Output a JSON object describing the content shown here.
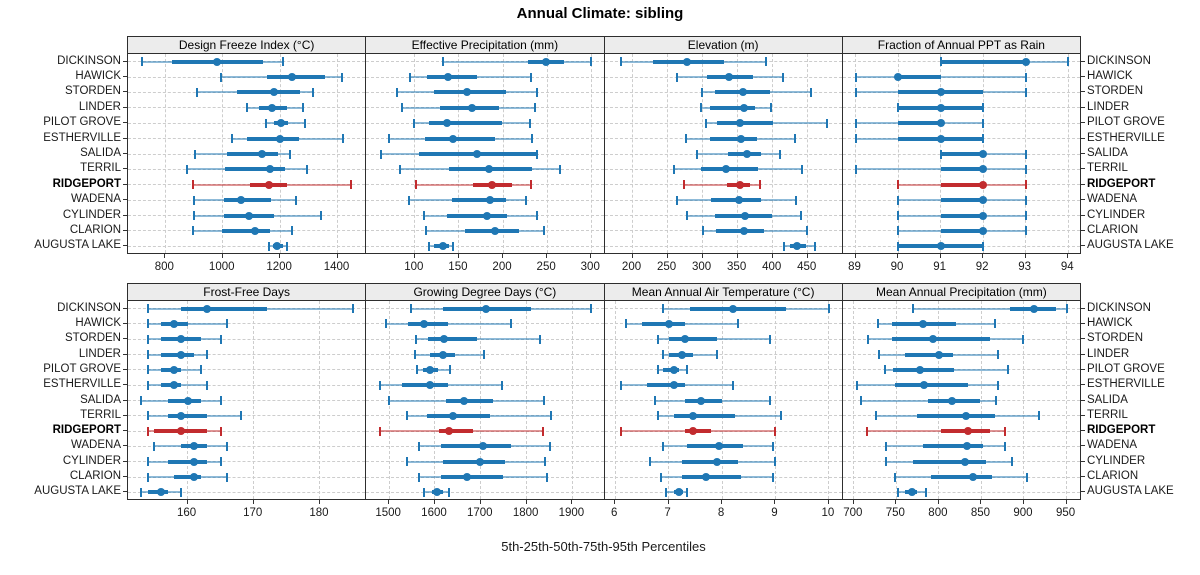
{
  "title": "Annual Climate: sibling",
  "colors": {
    "series": "#1f77b4",
    "highlight": "#c22b2e",
    "strip_bg": "#ececec",
    "panel_border": "#2e2e2e",
    "grid": "#cdcdcd"
  },
  "chart_data": {
    "type": "scatter",
    "subtype": "trellis percentile dot-interval plot (median dot, 25-75 thick bar, 5-95 whisker)",
    "title": "Annual Climate: sibling",
    "xlabel": "5th-25th-50th-75th-95th Percentiles",
    "percentiles": [
      5,
      25,
      50,
      75,
      95
    ],
    "grid": "dashed",
    "locations": [
      "DICKINSON",
      "HAWICK",
      "STORDEN",
      "LINDER",
      "PILOT GROVE",
      "ESTHERVILLE",
      "SALIDA",
      "TERRIL",
      "RIDGEPORT",
      "WADENA",
      "CYLINDER",
      "CLARION",
      "AUGUSTA LAKE"
    ],
    "highlight_location": "RIDGEPORT",
    "panels": [
      {
        "title": "Design Freeze Index (°C)",
        "xlim": [
          670,
          1500
        ],
        "ticks": [
          800,
          1000,
          1200,
          1400
        ],
        "values": [
          [
            720,
            825,
            980,
            1140,
            1210
          ],
          [
            995,
            1155,
            1243,
            1355,
            1415
          ],
          [
            910,
            1050,
            1177,
            1270,
            1315
          ],
          [
            1086,
            1125,
            1173,
            1223,
            1281
          ],
          [
            1151,
            1180,
            1202,
            1229,
            1285
          ],
          [
            1032,
            1086,
            1200,
            1267,
            1418
          ],
          [
            904,
            1014,
            1136,
            1194,
            1235
          ],
          [
            875,
            1009,
            1163,
            1217,
            1293
          ],
          [
            898,
            1095,
            1160,
            1225,
            1447
          ],
          [
            899,
            1006,
            1064,
            1167,
            1256
          ],
          [
            899,
            1003,
            1093,
            1177,
            1343
          ],
          [
            895,
            997,
            1111,
            1163,
            1243
          ],
          [
            1160,
            1175,
            1190,
            1210,
            1225
          ]
        ]
      },
      {
        "title": "Effective Precipitation (mm)",
        "xlim": [
          45,
          315
        ],
        "ticks": [
          100,
          150,
          200,
          250,
          300
        ],
        "values": [
          [
            132,
            228,
            249,
            269,
            300
          ],
          [
            95,
            114,
            138,
            171,
            232
          ],
          [
            80,
            122,
            159,
            203,
            238
          ],
          [
            86,
            129,
            165,
            195,
            236
          ],
          [
            99,
            116,
            136,
            199,
            231
          ],
          [
            71,
            112,
            143,
            191,
            233
          ],
          [
            62,
            105,
            171,
            237,
            238
          ],
          [
            83,
            139,
            184,
            233,
            265
          ],
          [
            101,
            166,
            188,
            210,
            232
          ],
          [
            93,
            142,
            185,
            203,
            226
          ],
          [
            110,
            137,
            182,
            205,
            238
          ],
          [
            113,
            157,
            191,
            218,
            247
          ],
          [
            116,
            122,
            132,
            139,
            143
          ]
        ]
      },
      {
        "title": "Elevation (m)",
        "xlim": [
          160,
          500
        ],
        "ticks": [
          200,
          250,
          300,
          350,
          400,
          450
        ],
        "values": [
          [
            183,
            229,
            278,
            331,
            391
          ],
          [
            264,
            306,
            338,
            372,
            415
          ],
          [
            299,
            317,
            357,
            396,
            455
          ],
          [
            297,
            311,
            359,
            375,
            397
          ],
          [
            305,
            320,
            354,
            400,
            478
          ],
          [
            277,
            311,
            355,
            378,
            432
          ],
          [
            292,
            336,
            364,
            383,
            410
          ],
          [
            259,
            298,
            333,
            379,
            442
          ],
          [
            274,
            335,
            354,
            367,
            382
          ],
          [
            264,
            312,
            352,
            383,
            433
          ],
          [
            278,
            318,
            361,
            399,
            441
          ],
          [
            300,
            319,
            359,
            388,
            449
          ],
          [
            416,
            425,
            435,
            448,
            460
          ]
        ]
      },
      {
        "title": "Fraction of Annual PPT as Rain",
        "xlim": [
          88.7,
          94.3
        ],
        "ticks": [
          89,
          90,
          91,
          92,
          93,
          94
        ],
        "values": [
          [
            91,
            91,
            93,
            93,
            94
          ],
          [
            89,
            90,
            90,
            91,
            93
          ],
          [
            89,
            90,
            91,
            92,
            93
          ],
          [
            90,
            90,
            91,
            92,
            92
          ],
          [
            89,
            90,
            91,
            91,
            92
          ],
          [
            89,
            90,
            91,
            92,
            92
          ],
          [
            91,
            91,
            92,
            92,
            93
          ],
          [
            89,
            91,
            92,
            92,
            93
          ],
          [
            90,
            91,
            92,
            92,
            93
          ],
          [
            90,
            91,
            92,
            92,
            93
          ],
          [
            90,
            91,
            92,
            92,
            93
          ],
          [
            90,
            91,
            92,
            92,
            93
          ],
          [
            90,
            90,
            91,
            92,
            92
          ]
        ]
      },
      {
        "title": "Frost-Free Days",
        "xlim": [
          151,
          187
        ],
        "ticks": [
          160,
          170,
          180
        ],
        "values": [
          [
            154,
            159,
            163,
            172,
            185
          ],
          [
            154,
            156,
            158,
            160,
            166
          ],
          [
            154,
            156,
            159,
            162,
            165
          ],
          [
            154,
            156,
            159,
            161,
            163
          ],
          [
            154,
            156,
            158,
            159,
            162
          ],
          [
            154,
            156,
            158,
            159,
            163
          ],
          [
            153,
            157,
            160,
            162,
            165
          ],
          [
            154,
            157,
            159,
            163,
            168
          ],
          [
            154,
            155,
            159,
            163,
            165
          ],
          [
            155,
            159,
            161,
            163,
            166
          ],
          [
            154,
            157,
            161,
            163,
            165
          ],
          [
            154,
            158,
            161,
            162,
            166
          ],
          [
            153,
            154,
            156,
            157,
            159
          ]
        ]
      },
      {
        "title": "Growing Degree Days (°C)",
        "xlim": [
          1450,
          1970
        ],
        "ticks": [
          1500,
          1600,
          1700,
          1800,
          1900
        ],
        "values": [
          [
            1547,
            1617,
            1712,
            1810,
            1941
          ],
          [
            1494,
            1542,
            1576,
            1629,
            1765
          ],
          [
            1558,
            1585,
            1620,
            1691,
            1829
          ],
          [
            1556,
            1589,
            1617,
            1644,
            1707
          ],
          [
            1560,
            1573,
            1589,
            1607,
            1633
          ],
          [
            1481,
            1527,
            1590,
            1629,
            1746
          ],
          [
            1500,
            1624,
            1663,
            1726,
            1837
          ],
          [
            1539,
            1582,
            1639,
            1720,
            1854
          ],
          [
            1480,
            1609,
            1630,
            1682,
            1835
          ],
          [
            1566,
            1614,
            1704,
            1765,
            1850
          ],
          [
            1539,
            1617,
            1698,
            1753,
            1840
          ],
          [
            1566,
            1614,
            1669,
            1749,
            1844
          ],
          [
            1576,
            1593,
            1605,
            1618,
            1631
          ]
        ]
      },
      {
        "title": "Mean Annual Air Temperature (°C)",
        "xlim": [
          5.8,
          10.26
        ],
        "ticks": [
          6,
          7,
          8,
          9,
          10
        ],
        "values": [
          [
            6.9,
            7.4,
            8.2,
            9.2,
            10.0
          ],
          [
            6.2,
            6.5,
            7.0,
            7.3,
            8.3
          ],
          [
            6.8,
            7.0,
            7.3,
            7.9,
            8.9
          ],
          [
            6.9,
            7.0,
            7.25,
            7.45,
            7.9
          ],
          [
            6.8,
            6.9,
            7.1,
            7.2,
            7.35
          ],
          [
            6.1,
            6.6,
            7.1,
            7.3,
            8.2
          ],
          [
            6.75,
            7.3,
            7.6,
            8.0,
            8.9
          ],
          [
            6.8,
            7.1,
            7.45,
            8.25,
            9.1
          ],
          [
            6.1,
            7.3,
            7.45,
            7.8,
            9.0
          ],
          [
            6.9,
            7.35,
            7.95,
            8.4,
            8.95
          ],
          [
            6.65,
            7.25,
            7.9,
            8.3,
            9.0
          ],
          [
            6.85,
            7.25,
            7.7,
            8.35,
            8.95
          ],
          [
            6.95,
            7.1,
            7.2,
            7.27,
            7.35
          ]
        ]
      },
      {
        "title": "Mean Annual Precipitation (mm)",
        "xlim": [
          687,
          967
        ],
        "ticks": [
          700,
          750,
          800,
          850,
          900,
          950
        ],
        "values": [
          [
            770,
            883,
            912,
            938,
            950
          ],
          [
            728,
            745,
            781,
            820,
            866
          ],
          [
            717,
            745,
            793,
            860,
            899
          ],
          [
            730,
            760,
            800,
            817,
            870
          ],
          [
            737,
            746,
            778,
            818,
            881
          ],
          [
            704,
            748,
            782,
            834,
            870
          ],
          [
            709,
            787,
            815,
            848,
            867
          ],
          [
            726,
            774,
            832,
            866,
            918
          ],
          [
            716,
            803,
            834,
            860,
            878
          ],
          [
            738,
            781,
            833,
            852,
            878
          ],
          [
            738,
            770,
            831,
            855,
            886
          ],
          [
            748,
            791,
            840,
            863,
            903
          ],
          [
            752,
            760,
            768,
            774,
            785
          ]
        ]
      }
    ]
  }
}
